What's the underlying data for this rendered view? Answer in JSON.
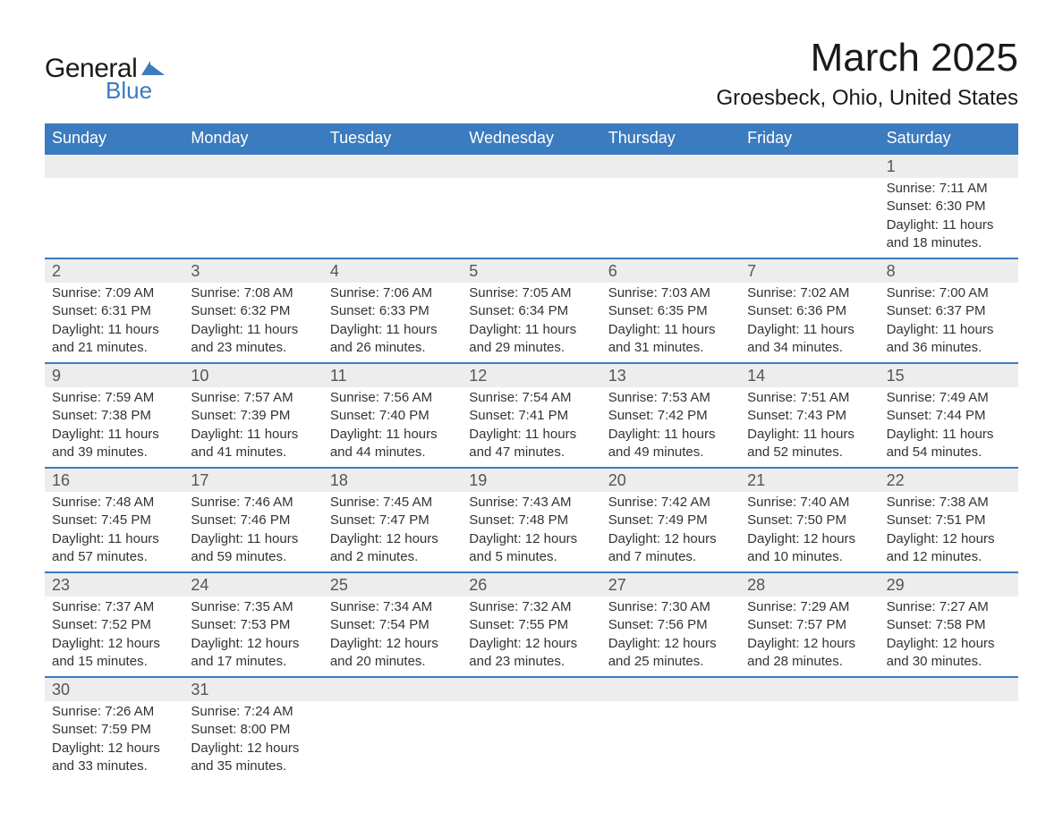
{
  "logo": {
    "word1": "General",
    "word2": "Blue",
    "text_color": "#1a1a1a",
    "accent_color": "#3b7bbf"
  },
  "title": {
    "month_year": "March 2025",
    "location": "Groesbeck, Ohio, United States",
    "month_fontsize": 44,
    "location_fontsize": 24,
    "text_color": "#1a1a1a"
  },
  "calendar": {
    "header_bg": "#3b7bbf",
    "header_text_color": "#ffffff",
    "daynum_row_bg": "#ededed",
    "daynum_border_color": "#3b7bbf",
    "daynum_text_color": "#555555",
    "body_text_color": "#333333",
    "days": [
      "Sunday",
      "Monday",
      "Tuesday",
      "Wednesday",
      "Thursday",
      "Friday",
      "Saturday"
    ],
    "weeks": [
      [
        null,
        null,
        null,
        null,
        null,
        null,
        {
          "n": "1",
          "sunrise": "7:11 AM",
          "sunset": "6:30 PM",
          "daylight": "11 hours and 18 minutes."
        }
      ],
      [
        {
          "n": "2",
          "sunrise": "7:09 AM",
          "sunset": "6:31 PM",
          "daylight": "11 hours and 21 minutes."
        },
        {
          "n": "3",
          "sunrise": "7:08 AM",
          "sunset": "6:32 PM",
          "daylight": "11 hours and 23 minutes."
        },
        {
          "n": "4",
          "sunrise": "7:06 AM",
          "sunset": "6:33 PM",
          "daylight": "11 hours and 26 minutes."
        },
        {
          "n": "5",
          "sunrise": "7:05 AM",
          "sunset": "6:34 PM",
          "daylight": "11 hours and 29 minutes."
        },
        {
          "n": "6",
          "sunrise": "7:03 AM",
          "sunset": "6:35 PM",
          "daylight": "11 hours and 31 minutes."
        },
        {
          "n": "7",
          "sunrise": "7:02 AM",
          "sunset": "6:36 PM",
          "daylight": "11 hours and 34 minutes."
        },
        {
          "n": "8",
          "sunrise": "7:00 AM",
          "sunset": "6:37 PM",
          "daylight": "11 hours and 36 minutes."
        }
      ],
      [
        {
          "n": "9",
          "sunrise": "7:59 AM",
          "sunset": "7:38 PM",
          "daylight": "11 hours and 39 minutes."
        },
        {
          "n": "10",
          "sunrise": "7:57 AM",
          "sunset": "7:39 PM",
          "daylight": "11 hours and 41 minutes."
        },
        {
          "n": "11",
          "sunrise": "7:56 AM",
          "sunset": "7:40 PM",
          "daylight": "11 hours and 44 minutes."
        },
        {
          "n": "12",
          "sunrise": "7:54 AM",
          "sunset": "7:41 PM",
          "daylight": "11 hours and 47 minutes."
        },
        {
          "n": "13",
          "sunrise": "7:53 AM",
          "sunset": "7:42 PM",
          "daylight": "11 hours and 49 minutes."
        },
        {
          "n": "14",
          "sunrise": "7:51 AM",
          "sunset": "7:43 PM",
          "daylight": "11 hours and 52 minutes."
        },
        {
          "n": "15",
          "sunrise": "7:49 AM",
          "sunset": "7:44 PM",
          "daylight": "11 hours and 54 minutes."
        }
      ],
      [
        {
          "n": "16",
          "sunrise": "7:48 AM",
          "sunset": "7:45 PM",
          "daylight": "11 hours and 57 minutes."
        },
        {
          "n": "17",
          "sunrise": "7:46 AM",
          "sunset": "7:46 PM",
          "daylight": "11 hours and 59 minutes."
        },
        {
          "n": "18",
          "sunrise": "7:45 AM",
          "sunset": "7:47 PM",
          "daylight": "12 hours and 2 minutes."
        },
        {
          "n": "19",
          "sunrise": "7:43 AM",
          "sunset": "7:48 PM",
          "daylight": "12 hours and 5 minutes."
        },
        {
          "n": "20",
          "sunrise": "7:42 AM",
          "sunset": "7:49 PM",
          "daylight": "12 hours and 7 minutes."
        },
        {
          "n": "21",
          "sunrise": "7:40 AM",
          "sunset": "7:50 PM",
          "daylight": "12 hours and 10 minutes."
        },
        {
          "n": "22",
          "sunrise": "7:38 AM",
          "sunset": "7:51 PM",
          "daylight": "12 hours and 12 minutes."
        }
      ],
      [
        {
          "n": "23",
          "sunrise": "7:37 AM",
          "sunset": "7:52 PM",
          "daylight": "12 hours and 15 minutes."
        },
        {
          "n": "24",
          "sunrise": "7:35 AM",
          "sunset": "7:53 PM",
          "daylight": "12 hours and 17 minutes."
        },
        {
          "n": "25",
          "sunrise": "7:34 AM",
          "sunset": "7:54 PM",
          "daylight": "12 hours and 20 minutes."
        },
        {
          "n": "26",
          "sunrise": "7:32 AM",
          "sunset": "7:55 PM",
          "daylight": "12 hours and 23 minutes."
        },
        {
          "n": "27",
          "sunrise": "7:30 AM",
          "sunset": "7:56 PM",
          "daylight": "12 hours and 25 minutes."
        },
        {
          "n": "28",
          "sunrise": "7:29 AM",
          "sunset": "7:57 PM",
          "daylight": "12 hours and 28 minutes."
        },
        {
          "n": "29",
          "sunrise": "7:27 AM",
          "sunset": "7:58 PM",
          "daylight": "12 hours and 30 minutes."
        }
      ],
      [
        {
          "n": "30",
          "sunrise": "7:26 AM",
          "sunset": "7:59 PM",
          "daylight": "12 hours and 33 minutes."
        },
        {
          "n": "31",
          "sunrise": "7:24 AM",
          "sunset": "8:00 PM",
          "daylight": "12 hours and 35 minutes."
        },
        null,
        null,
        null,
        null,
        null
      ]
    ],
    "labels": {
      "sunrise": "Sunrise: ",
      "sunset": "Sunset: ",
      "daylight": "Daylight: "
    }
  }
}
